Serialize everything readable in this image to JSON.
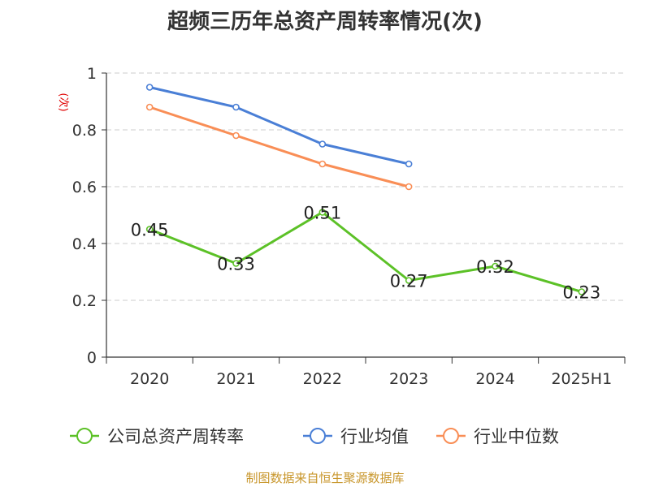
{
  "chart_data": {
    "type": "line",
    "title": "超频三历年总资产周转率情况(次)",
    "ylabel": "(次)",
    "xlabel": "",
    "categories": [
      "2020",
      "2021",
      "2022",
      "2023",
      "2024",
      "2025H1"
    ],
    "ylim": [
      0,
      1
    ],
    "yticks": [
      "0",
      "0.2",
      "0.4",
      "0.6",
      "0.8",
      "1"
    ],
    "grid": "horizontal dashed",
    "legend_position": "bottom",
    "series": [
      {
        "name": "公司总资产周转率",
        "color": "#5cc127",
        "values": [
          0.45,
          0.33,
          0.51,
          0.27,
          0.32,
          0.23
        ],
        "labels": [
          "0.45",
          "0.33",
          "0.51",
          "0.27",
          "0.32",
          "0.23"
        ]
      },
      {
        "name": "行业均值",
        "color": "#4a7fd6",
        "values": [
          0.95,
          0.88,
          0.75,
          0.68,
          null,
          null
        ]
      },
      {
        "name": "行业中位数",
        "color": "#f98e56",
        "values": [
          0.88,
          0.78,
          0.68,
          0.6,
          null,
          null
        ]
      }
    ]
  },
  "source": "制图数据来自恒生聚源数据库",
  "colors": {
    "source": "#c8962b",
    "ylabel": "#e00000",
    "axis": "#333333",
    "grid": "#cccccc"
  }
}
